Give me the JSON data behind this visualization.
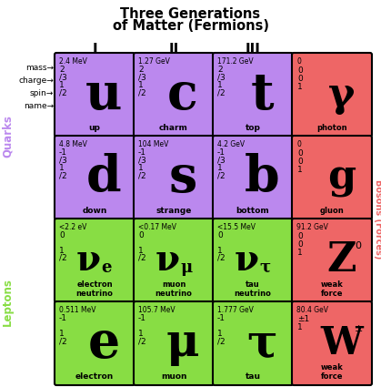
{
  "title_line1": "Three Generations",
  "title_line2": "of Matter (Fermions)",
  "col_headers": [
    "I",
    "II",
    "III"
  ],
  "row_labels": [
    "mass→",
    "charge→",
    "spin→",
    "name→"
  ],
  "side_label_quarks": "Quarks",
  "side_label_leptons": "Leptons",
  "side_label_bosons": "Bosons (Forces)",
  "purple": "#bb88ee",
  "green": "#88dd44",
  "red": "#ee6666",
  "particles": [
    {
      "symbol": "u",
      "name": "up",
      "mass": "2.4 MeV",
      "charge": "2/3",
      "spin": "1/2",
      "row": 0,
      "col": 0,
      "color": "purple",
      "boson": false
    },
    {
      "symbol": "c",
      "name": "charm",
      "mass": "1.27 GeV",
      "charge": "2/3",
      "spin": "1/2",
      "row": 0,
      "col": 1,
      "color": "purple",
      "boson": false
    },
    {
      "symbol": "t",
      "name": "top",
      "mass": "171.2 GeV",
      "charge": "2/3",
      "spin": "1/2",
      "row": 0,
      "col": 2,
      "color": "purple",
      "boson": false
    },
    {
      "symbol": "γ",
      "name": "photon",
      "mass": "0",
      "charge_lines": [
        "0",
        "0",
        "1"
      ],
      "superscript": "",
      "row": 0,
      "col": 3,
      "color": "red",
      "boson": true
    },
    {
      "symbol": "d",
      "name": "down",
      "mass": "4.8 MeV",
      "charge": "-1/3",
      "spin": "1/2",
      "row": 1,
      "col": 0,
      "color": "purple",
      "boson": false
    },
    {
      "symbol": "s",
      "name": "strange",
      "mass": "104 MeV",
      "charge": "-1/3",
      "spin": "1/2",
      "row": 1,
      "col": 1,
      "color": "purple",
      "boson": false
    },
    {
      "symbol": "b",
      "name": "bottom",
      "mass": "4.2 GeV",
      "charge": "-1/3",
      "spin": "1/2",
      "row": 1,
      "col": 2,
      "color": "purple",
      "boson": false
    },
    {
      "symbol": "g",
      "name": "gluon",
      "mass": "0",
      "charge_lines": [
        "0",
        "0",
        "1"
      ],
      "superscript": "",
      "row": 1,
      "col": 3,
      "color": "red",
      "boson": true
    },
    {
      "symbol": "ν",
      "subscript": "e",
      "name": "electron\nneutrino",
      "mass": "<2.2 eV",
      "charge": "0",
      "spin": "1/2",
      "row": 2,
      "col": 0,
      "color": "green",
      "boson": false,
      "neutrino": true
    },
    {
      "symbol": "ν",
      "subscript": "μ",
      "name": "muon\nneutrino",
      "mass": "<0.17 MeV",
      "charge": "0",
      "spin": "1/2",
      "row": 2,
      "col": 1,
      "color": "green",
      "boson": false,
      "neutrino": true
    },
    {
      "symbol": "ν",
      "subscript": "τ",
      "name": "tau\nneutrino",
      "mass": "<15.5 MeV",
      "charge": "0",
      "spin": "1/2",
      "row": 2,
      "col": 2,
      "color": "green",
      "boson": false,
      "neutrino": true
    },
    {
      "symbol": "Z",
      "name": "weak\nforce",
      "mass": "91.2 GeV",
      "charge_lines": [
        "0",
        "0",
        "1"
      ],
      "superscript": "0",
      "row": 2,
      "col": 3,
      "color": "red",
      "boson": true
    },
    {
      "symbol": "e",
      "name": "electron",
      "mass": "0.511 MeV",
      "charge": "-1",
      "spin": "1/2",
      "row": 3,
      "col": 0,
      "color": "green",
      "boson": false
    },
    {
      "symbol": "μ",
      "name": "muon",
      "mass": "105.7 MeV",
      "charge": "-1",
      "spin": "1/2",
      "row": 3,
      "col": 1,
      "color": "green",
      "boson": false
    },
    {
      "symbol": "τ",
      "name": "tau",
      "mass": "1.777 GeV",
      "charge": "-1",
      "spin": "1/2",
      "row": 3,
      "col": 2,
      "color": "green",
      "boson": false
    },
    {
      "symbol": "W",
      "name": "weak\nforce",
      "mass": "80.4 GeV",
      "charge_lines": [
        "±1",
        "1"
      ],
      "superscript": "±",
      "row": 3,
      "col": 3,
      "color": "red",
      "boson": true
    }
  ]
}
